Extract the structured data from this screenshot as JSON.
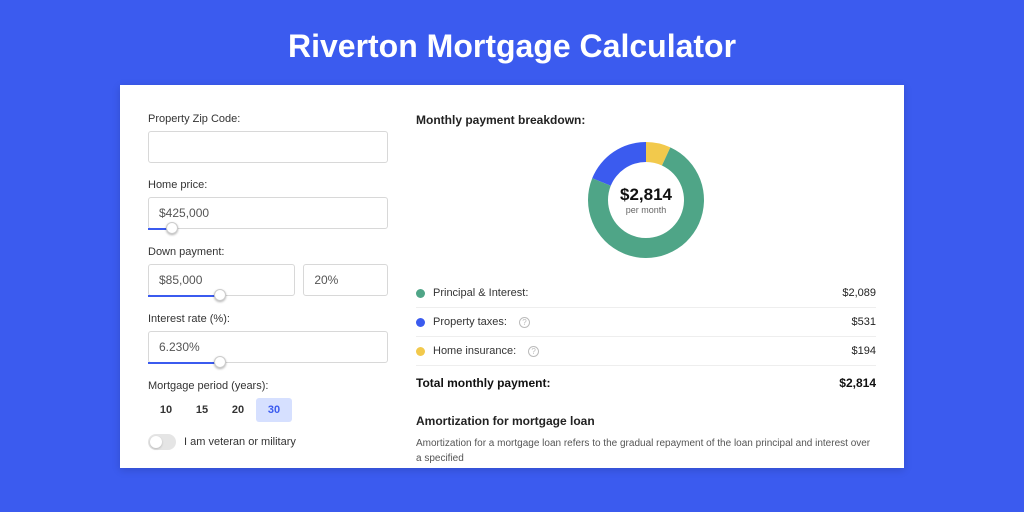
{
  "theme": {
    "brand_bg": "#3B5BEF",
    "card_bg": "#ffffff",
    "text": "#333333",
    "muted": "#666666",
    "border": "#d8d8d8",
    "selected_bg": "#d6e0ff"
  },
  "page_title": "Riverton Mortgage Calculator",
  "form": {
    "zip": {
      "label": "Property Zip Code:",
      "value": ""
    },
    "home_price": {
      "label": "Home price:",
      "value": "$425,000",
      "slider_pct": 10
    },
    "down_payment": {
      "label": "Down payment:",
      "amount": "$85,000",
      "percent": "20%",
      "slider_pct": 30
    },
    "interest_rate": {
      "label": "Interest rate (%):",
      "value": "6.230%",
      "slider_pct": 30
    },
    "mortgage_period": {
      "label": "Mortgage period (years):",
      "options": [
        "10",
        "15",
        "20",
        "30"
      ],
      "selected": "30"
    },
    "veteran": {
      "label": "I am veteran or military",
      "on": false
    }
  },
  "breakdown": {
    "title": "Monthly payment breakdown:",
    "total_amount": "$2,814",
    "total_sub": "per month",
    "donut": {
      "slices": [
        {
          "label": "Principal & Interest:",
          "value": "$2,089",
          "color": "#4FA587",
          "pct": 0.742,
          "key": "pi"
        },
        {
          "label": "Property taxes:",
          "value": "$531",
          "color": "#3B5BEF",
          "pct": 0.189,
          "key": "tax",
          "help": true
        },
        {
          "label": "Home insurance:",
          "value": "$194",
          "color": "#F2C94C",
          "pct": 0.069,
          "key": "ins",
          "help": true
        }
      ]
    },
    "total_label": "Total monthly payment:",
    "total_value": "$2,814"
  },
  "amortization": {
    "title": "Amortization for mortgage loan",
    "text": "Amortization for a mortgage loan refers to the gradual repayment of the loan principal and interest over a specified"
  }
}
